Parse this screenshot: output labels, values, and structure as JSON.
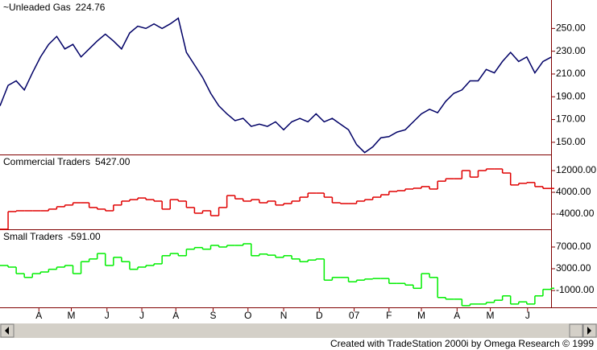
{
  "chart_data": [
    {
      "type": "line",
      "xlim": [
        0,
        68
      ],
      "ylim": [
        139.3,
        275
      ],
      "yticks": [
        {
          "value": 250,
          "label": "250.00"
        },
        {
          "value": 230,
          "label": "230.00"
        },
        {
          "value": 210,
          "label": "210.00"
        },
        {
          "value": 190,
          "label": "190.00"
        },
        {
          "value": 170,
          "label": "170.00"
        },
        {
          "value": 150,
          "label": "150.00"
        }
      ],
      "series": [
        {
          "name": "~Unleaded Gas",
          "current_label": "224.76",
          "color": "#000066",
          "values": [
            182,
            200,
            204,
            196,
            211,
            225,
            236,
            243,
            232,
            236,
            225,
            232,
            239,
            245,
            239,
            232,
            246,
            252,
            250,
            254,
            250,
            254,
            259,
            229,
            218,
            207,
            193,
            182,
            175,
            169,
            171,
            164,
            166,
            164,
            168,
            161,
            168,
            171,
            168,
            175,
            168,
            171,
            166,
            161,
            148,
            141,
            146,
            154,
            155,
            159,
            161,
            168,
            175,
            179,
            176,
            186,
            193,
            196,
            204,
            204,
            214,
            211,
            221,
            229,
            221,
            225,
            211,
            221,
            224.76
          ]
        }
      ]
    },
    {
      "type": "step",
      "xlim": [
        0,
        68
      ],
      "ylim": [
        -9630,
        17926
      ],
      "yticks": [
        {
          "value": 12000,
          "label": "12000.00"
        },
        {
          "value": 4000,
          "label": "4000.00"
        },
        {
          "value": -4000,
          "label": "-4000.00"
        }
      ],
      "series": [
        {
          "name": "Commercial Traders",
          "current_label": "5427.00",
          "color": "#e00000",
          "values": [
            -9600,
            -3100,
            -2800,
            -2800,
            -2800,
            -2800,
            -2200,
            -1300,
            -700,
            150,
            150,
            -1600,
            -2200,
            -2800,
            -700,
            750,
            1300,
            1900,
            1300,
            750,
            -2200,
            1300,
            750,
            -1600,
            -3700,
            -2800,
            -4600,
            -1600,
            2800,
            1600,
            750,
            1300,
            150,
            750,
            -700,
            -150,
            750,
            2200,
            3700,
            3700,
            2200,
            150,
            -150,
            -150,
            750,
            1300,
            2200,
            3100,
            4300,
            4600,
            5200,
            5500,
            6100,
            5200,
            8100,
            9000,
            9000,
            12000,
            9600,
            12000,
            12600,
            12600,
            11100,
            6700,
            7300,
            7600,
            6100,
            5427,
            5427
          ]
        }
      ]
    },
    {
      "type": "step",
      "xlim": [
        0,
        68
      ],
      "ylim": [
        -4111,
        10259
      ],
      "yticks": [
        {
          "value": 7000,
          "label": "7000.00"
        },
        {
          "value": 3000,
          "label": "3000.00"
        },
        {
          "value": -1000,
          "label": "-1000.00"
        }
      ],
      "xticks": [
        {
          "value": 4.8,
          "label": "A"
        },
        {
          "value": 8.8,
          "label": "M"
        },
        {
          "value": 13.2,
          "label": "J"
        },
        {
          "value": 17.5,
          "label": "J"
        },
        {
          "value": 21.7,
          "label": "A"
        },
        {
          "value": 26.3,
          "label": "S"
        },
        {
          "value": 30.6,
          "label": "O"
        },
        {
          "value": 35,
          "label": "N"
        },
        {
          "value": 39.4,
          "label": "D"
        },
        {
          "value": 43.7,
          "label": "07"
        },
        {
          "value": 48,
          "label": "F"
        },
        {
          "value": 52,
          "label": "M"
        },
        {
          "value": 56.4,
          "label": "A"
        },
        {
          "value": 60.5,
          "label": "M"
        },
        {
          "value": 65.1,
          "label": "J"
        }
      ],
      "series": [
        {
          "name": "Small Traders",
          "current_label": "-591.00",
          "color": "#00ee00",
          "values": [
            3600,
            3300,
            2100,
            1400,
            2100,
            2400,
            2900,
            3300,
            3600,
            2100,
            4300,
            4800,
            5800,
            3600,
            5100,
            4300,
            2900,
            3300,
            3600,
            3900,
            5400,
            5800,
            5400,
            6600,
            6900,
            6600,
            7300,
            7000,
            7300,
            7300,
            7600,
            5400,
            5700,
            5500,
            5100,
            5400,
            4800,
            4300,
            4600,
            4800,
            900,
            1400,
            1400,
            600,
            900,
            1100,
            1200,
            1200,
            300,
            300,
            0,
            -600,
            2100,
            1400,
            -2300,
            -2600,
            -2600,
            -3800,
            -3500,
            -3500,
            -3200,
            -2800,
            -2000,
            -3500,
            -3100,
            -3500,
            -2000,
            -800,
            -591
          ]
        }
      ]
    }
  ],
  "footer": "Created with TradeStation 2000i by Omega Research © 1999"
}
